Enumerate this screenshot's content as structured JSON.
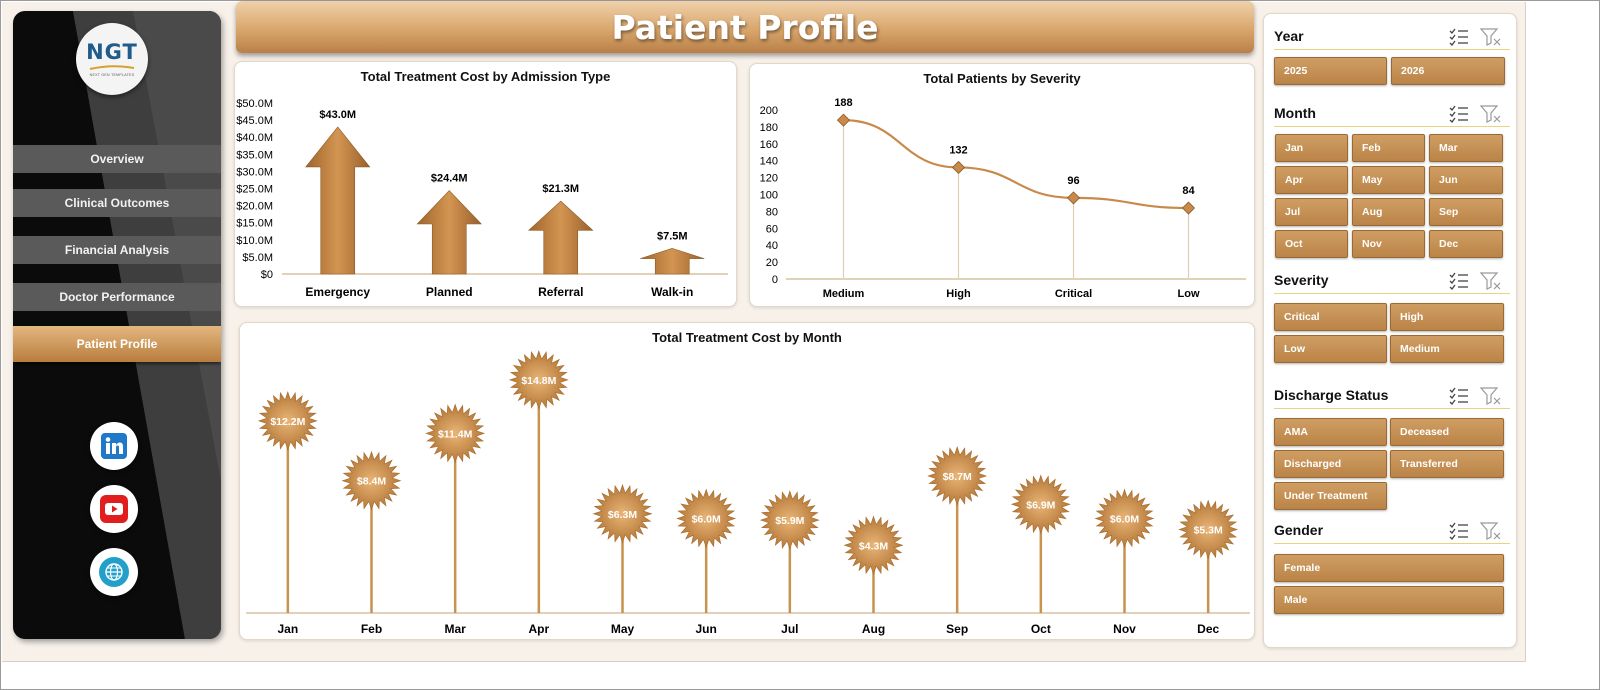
{
  "page": {
    "title": "Patient Profile"
  },
  "brand": {
    "logo_text": "NGT",
    "logo_subtitle": "NEXT GEN TEMPLATES"
  },
  "colors": {
    "accent": "#c08a4d",
    "accent_dark": "#8a5a26",
    "sidebar": "#0b0b0b",
    "nav_item": "#5a5a5a"
  },
  "sidebar": {
    "items": [
      {
        "label": "Overview",
        "active": false
      },
      {
        "label": "Clinical Outcomes",
        "active": false
      },
      {
        "label": "Financial Analysis",
        "active": false
      },
      {
        "label": "Doctor Performance",
        "active": false
      },
      {
        "label": "Patient Profile",
        "active": true
      }
    ],
    "social": [
      {
        "name": "linkedin-icon",
        "glyph": "in"
      },
      {
        "name": "youtube-icon",
        "glyph": "▶"
      },
      {
        "name": "globe-icon",
        "glyph": ""
      }
    ]
  },
  "chart_data": [
    {
      "type": "bar",
      "title": "Total Treatment Cost by Admission Type",
      "categories": [
        "Emergency",
        "Planned",
        "Referral",
        "Walk-in"
      ],
      "values": [
        43.0,
        24.4,
        21.3,
        7.5
      ],
      "data_labels": [
        "$43.0M",
        "$24.4M",
        "$21.3M",
        "$7.5M"
      ],
      "ylim": [
        0,
        50
      ],
      "yticks": [
        "$0",
        "$5.0M",
        "$10.0M",
        "$15.0M",
        "$20.0M",
        "$25.0M",
        "$30.0M",
        "$35.0M",
        "$40.0M",
        "$45.0M",
        "$50.0M"
      ],
      "mark": "arrow"
    },
    {
      "type": "line",
      "title": "Total Patients by Severity",
      "categories": [
        "Medium",
        "High",
        "Critical",
        "Low"
      ],
      "values": [
        188,
        132,
        96,
        84
      ],
      "ylim": [
        0,
        200
      ],
      "yticks": [
        "0",
        "20",
        "40",
        "60",
        "80",
        "100",
        "120",
        "140",
        "160",
        "180",
        "200"
      ]
    },
    {
      "type": "lollipop",
      "title": "Total Treatment Cost by Month",
      "categories": [
        "Jan",
        "Feb",
        "Mar",
        "Apr",
        "May",
        "Jun",
        "Jul",
        "Aug",
        "Sep",
        "Oct",
        "Nov",
        "Dec"
      ],
      "values": [
        12.2,
        8.4,
        11.4,
        14.8,
        6.3,
        6.0,
        5.9,
        4.3,
        8.7,
        6.9,
        6.0,
        5.3
      ],
      "data_labels": [
        "$12.2M",
        "$8.4M",
        "$11.4M",
        "$14.8M",
        "$6.3M",
        "$6.0M",
        "$5.9M",
        "$4.3M",
        "$8.7M",
        "$6.9M",
        "$6.0M",
        "$5.3M"
      ],
      "ylim": [
        0,
        16
      ]
    }
  ],
  "filters": [
    {
      "title": "Year",
      "options": [
        "2025",
        "2026"
      ]
    },
    {
      "title": "Month",
      "options": [
        "Jan",
        "Feb",
        "Mar",
        "Apr",
        "May",
        "Jun",
        "Jul",
        "Aug",
        "Sep",
        "Oct",
        "Nov",
        "Dec"
      ]
    },
    {
      "title": "Severity",
      "options": [
        "Critical",
        "High",
        "Low",
        "Medium"
      ]
    },
    {
      "title": "Discharge Status",
      "options": [
        "AMA",
        "Deceased",
        "Discharged",
        "Transferred",
        "Under Treatment"
      ]
    },
    {
      "title": "Gender",
      "options": [
        "Female",
        "Male"
      ]
    }
  ]
}
